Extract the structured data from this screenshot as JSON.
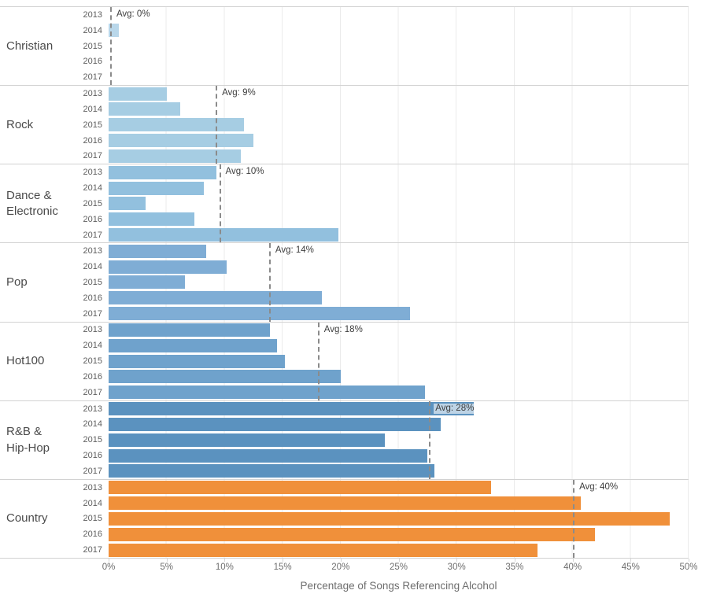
{
  "chart_data": {
    "type": "bar",
    "orientation": "horizontal",
    "title": "",
    "xlabel": "Percentage of Songs Referencing Alcohol",
    "ylabel": "",
    "xlim": [
      0,
      50
    ],
    "grid": true,
    "x_ticks": [
      "0%",
      "5%",
      "10%",
      "15%",
      "20%",
      "25%",
      "30%",
      "35%",
      "40%",
      "45%",
      "50%"
    ],
    "years": [
      "2013",
      "2014",
      "2015",
      "2016",
      "2017"
    ],
    "groups": [
      {
        "genre": "Christian",
        "label_lines": [
          "Christian"
        ],
        "color": "#b9d7ea",
        "values": [
          0,
          0.9,
          0,
          0,
          0
        ],
        "avg_label": "Avg: 0%",
        "avg_value": 0.2
      },
      {
        "genre": "Rock",
        "label_lines": [
          "Rock"
        ],
        "color": "#a6cde3",
        "values": [
          5.0,
          6.2,
          11.7,
          12.5,
          11.4
        ],
        "avg_label": "Avg: 9%",
        "avg_value": 9.3
      },
      {
        "genre": "Dance & Electronic",
        "label_lines": [
          "Dance &",
          "Electronic"
        ],
        "color": "#92c0de",
        "values": [
          9.3,
          8.2,
          3.2,
          7.4,
          19.8
        ],
        "avg_label": "Avg: 10%",
        "avg_value": 9.6
      },
      {
        "genre": "Pop",
        "label_lines": [
          "Pop"
        ],
        "color": "#7fadd5",
        "values": [
          8.4,
          10.2,
          6.6,
          18.4,
          26.0
        ],
        "avg_label": "Avg: 14%",
        "avg_value": 13.9
      },
      {
        "genre": "Hot100",
        "label_lines": [
          "Hot100"
        ],
        "color": "#6fa2cc",
        "values": [
          13.9,
          14.5,
          15.2,
          20.0,
          27.3
        ],
        "avg_label": "Avg: 18%",
        "avg_value": 18.1
      },
      {
        "genre": "R&B & Hip-Hop",
        "label_lines": [
          "R&B &",
          "Hip-Hop"
        ],
        "color": "#5b92bf",
        "values": [
          31.5,
          28.6,
          23.8,
          27.5,
          28.1
        ],
        "avg_label": "Avg: 28%",
        "avg_value": 27.7
      },
      {
        "genre": "Country",
        "label_lines": [
          "Country"
        ],
        "color": "#f0903a",
        "values": [
          33.0,
          40.7,
          48.4,
          41.9,
          37.0
        ],
        "avg_label": "Avg: 40%",
        "avg_value": 40.1
      }
    ],
    "style": {
      "gridline_color": "#ebebeb",
      "section_border_color": "#d2d2d2",
      "avg_line_color": "#8b8b8b",
      "label_text_color": "#4a4a4a",
      "tick_text_color": "#6e6e6e"
    }
  }
}
